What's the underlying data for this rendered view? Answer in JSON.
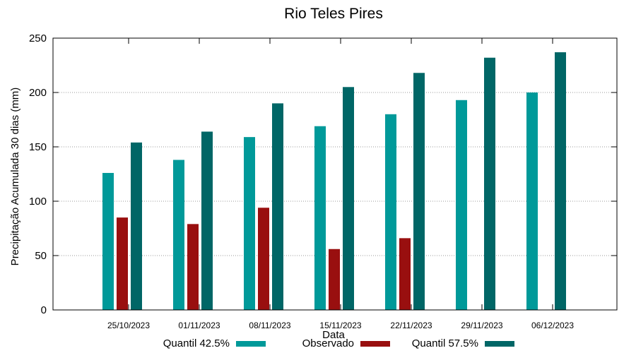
{
  "chart_data": {
    "type": "bar",
    "title": "Rio Teles Pires",
    "xlabel": "Data",
    "ylabel": "Precipitação Acumulada 30 dias (mm)",
    "ylim": [
      0,
      250
    ],
    "yticks": [
      0,
      50,
      100,
      150,
      200,
      250
    ],
    "grid": true,
    "legend_position": "bottom",
    "categories": [
      "25/10/2023",
      "01/11/2023",
      "08/11/2023",
      "15/11/2023",
      "22/11/2023",
      "29/11/2023",
      "06/12/2023"
    ],
    "series": [
      {
        "name": "Quantil 42.5%",
        "color": "#009999",
        "values": [
          126,
          138,
          159,
          169,
          180,
          193,
          200
        ]
      },
      {
        "name": "Observado",
        "color": "#990f0f",
        "values": [
          85,
          79,
          94,
          56,
          66,
          null,
          null
        ]
      },
      {
        "name": "Quantil 57.5%",
        "color": "#006666",
        "values": [
          154,
          164,
          190,
          205,
          218,
          232,
          237
        ]
      }
    ]
  }
}
